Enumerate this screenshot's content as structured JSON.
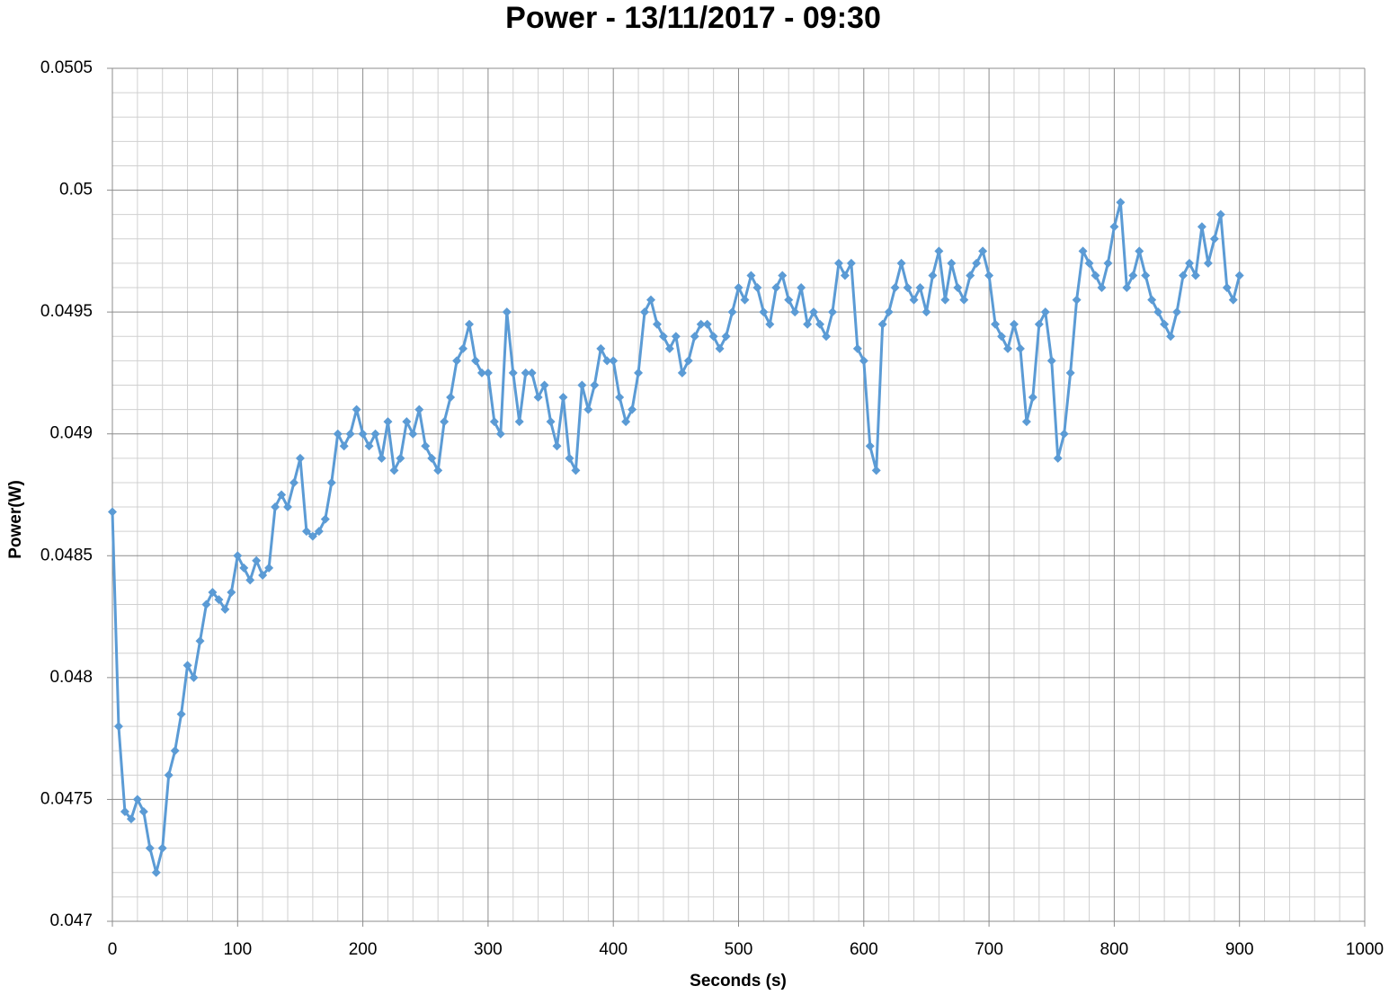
{
  "chart_data": {
    "type": "line",
    "title": "Power - 13/11/2017 - 09:30",
    "x_label": "Seconds (s)",
    "y_label": "Power(W)",
    "marker": "diamond",
    "grid": true,
    "minor_grid": true,
    "color": "#5b9bd5",
    "xlim": [
      0,
      1000
    ],
    "xticks": [
      0,
      100,
      200,
      300,
      400,
      500,
      600,
      700,
      800,
      900,
      1000
    ],
    "ylim": [
      0.047,
      0.0505
    ],
    "yticks": [
      0.047,
      0.0475,
      0.048,
      0.0485,
      0.049,
      0.0495,
      0.05,
      0.0505
    ],
    "x": [
      0,
      5,
      10,
      15,
      20,
      25,
      30,
      35,
      40,
      45,
      50,
      55,
      60,
      65,
      70,
      75,
      80,
      85,
      90,
      95,
      100,
      105,
      110,
      115,
      120,
      125,
      130,
      135,
      140,
      145,
      150,
      155,
      160,
      165,
      170,
      175,
      180,
      185,
      190,
      195,
      200,
      205,
      210,
      215,
      220,
      225,
      230,
      235,
      240,
      245,
      250,
      255,
      260,
      265,
      270,
      275,
      280,
      285,
      290,
      295,
      300,
      305,
      310,
      315,
      320,
      325,
      330,
      335,
      340,
      345,
      350,
      355,
      360,
      365,
      370,
      375,
      380,
      385,
      390,
      395,
      400,
      405,
      410,
      415,
      420,
      425,
      430,
      435,
      440,
      445,
      450,
      455,
      460,
      465,
      470,
      475,
      480,
      485,
      490,
      495,
      500,
      505,
      510,
      515,
      520,
      525,
      530,
      535,
      540,
      545,
      550,
      555,
      560,
      565,
      570,
      575,
      580,
      585,
      590,
      595,
      600,
      605,
      610,
      615,
      620,
      625,
      630,
      635,
      640,
      645,
      650,
      655,
      660,
      665,
      670,
      675,
      680,
      685,
      690,
      695,
      700,
      705,
      710,
      715,
      720,
      725,
      730,
      735,
      740,
      745,
      750,
      755,
      760,
      765,
      770,
      775,
      780,
      785,
      790,
      795,
      800,
      805,
      810,
      815,
      820,
      825,
      830,
      835,
      840,
      845,
      850,
      855,
      860,
      865,
      870,
      875,
      880,
      885,
      890,
      895,
      900
    ],
    "series": [
      {
        "color": "#5b9bd5",
        "values": [
          0.04868,
          0.0478,
          0.04745,
          0.04742,
          0.0475,
          0.04745,
          0.0473,
          0.0472,
          0.0473,
          0.0476,
          0.0477,
          0.04785,
          0.04805,
          0.048,
          0.04815,
          0.0483,
          0.04835,
          0.04832,
          0.04828,
          0.04835,
          0.0485,
          0.04845,
          0.0484,
          0.04848,
          0.04842,
          0.04845,
          0.0487,
          0.04875,
          0.0487,
          0.0488,
          0.0489,
          0.0486,
          0.04858,
          0.0486,
          0.04865,
          0.0488,
          0.049,
          0.04895,
          0.049,
          0.0491,
          0.049,
          0.04895,
          0.049,
          0.0489,
          0.04905,
          0.04885,
          0.0489,
          0.04905,
          0.049,
          0.0491,
          0.04895,
          0.0489,
          0.04885,
          0.04905,
          0.04915,
          0.0493,
          0.04935,
          0.04945,
          0.0493,
          0.04925,
          0.04925,
          0.04905,
          0.049,
          0.0495,
          0.04925,
          0.04905,
          0.04925,
          0.04925,
          0.04915,
          0.0492,
          0.04905,
          0.04895,
          0.04915,
          0.0489,
          0.04885,
          0.0492,
          0.0491,
          0.0492,
          0.04935,
          0.0493,
          0.0493,
          0.04915,
          0.04905,
          0.0491,
          0.04925,
          0.0495,
          0.04955,
          0.04945,
          0.0494,
          0.04935,
          0.0494,
          0.04925,
          0.0493,
          0.0494,
          0.04945,
          0.04945,
          0.0494,
          0.04935,
          0.0494,
          0.0495,
          0.0496,
          0.04955,
          0.04965,
          0.0496,
          0.0495,
          0.04945,
          0.0496,
          0.04965,
          0.04955,
          0.0495,
          0.0496,
          0.04945,
          0.0495,
          0.04945,
          0.0494,
          0.0495,
          0.0497,
          0.04965,
          0.0497,
          0.04935,
          0.0493,
          0.04895,
          0.04885,
          0.04945,
          0.0495,
          0.0496,
          0.0497,
          0.0496,
          0.04955,
          0.0496,
          0.0495,
          0.04965,
          0.04975,
          0.04955,
          0.0497,
          0.0496,
          0.04955,
          0.04965,
          0.0497,
          0.04975,
          0.04965,
          0.04945,
          0.0494,
          0.04935,
          0.04945,
          0.04935,
          0.04905,
          0.04915,
          0.04945,
          0.0495,
          0.0493,
          0.0489,
          0.049,
          0.04925,
          0.04955,
          0.04975,
          0.0497,
          0.04965,
          0.0496,
          0.0497,
          0.04985,
          0.04995,
          0.0496,
          0.04965,
          0.04975,
          0.04965,
          0.04955,
          0.0495,
          0.04945,
          0.0494,
          0.0495,
          0.04965,
          0.0497,
          0.04965,
          0.04985,
          0.0497,
          0.0498,
          0.0499,
          0.0496,
          0.04955,
          0.04965
        ]
      }
    ]
  }
}
